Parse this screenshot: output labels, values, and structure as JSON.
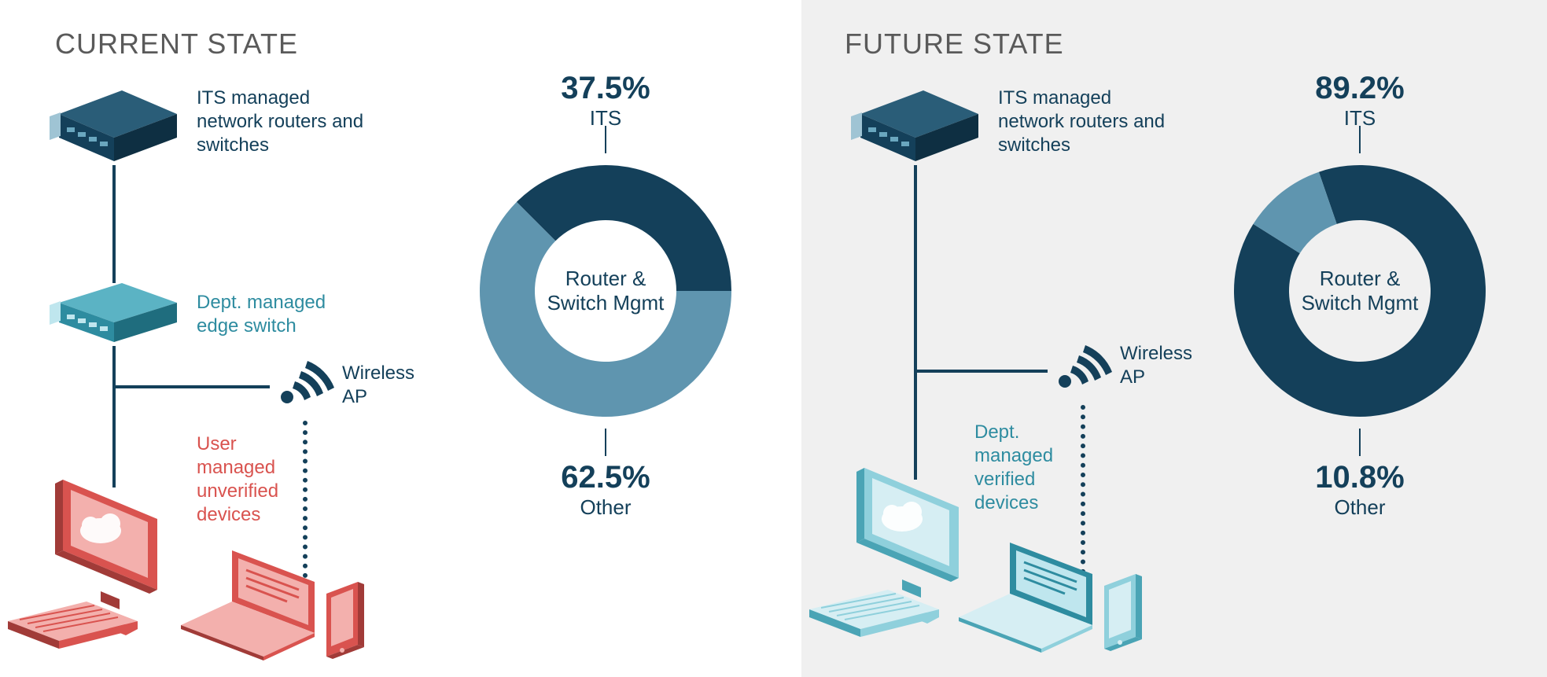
{
  "left": {
    "heading": "CURRENT STATE",
    "background": "#ffffff",
    "diagram": {
      "router_label": "ITS managed\nnetwork routers and\nswitches",
      "router_color": "#14405a",
      "edge_switch_label": "Dept. managed\nedge switch",
      "edge_switch_color": "#2e8ca0",
      "wireless_ap_label": "Wireless\nAP",
      "wireless_ap_color": "#14405a",
      "devices_label": "User\nmanaged\nunverified\ndevices",
      "devices_color": "#d9534f",
      "line_color": "#14405a"
    },
    "chart": {
      "type": "donut",
      "center_label": "Router &\nSwitch Mgmt",
      "slices": [
        {
          "name": "ITS",
          "value": 37.5,
          "color": "#14405a",
          "top_label_value": "37.5%",
          "top_label_name": "ITS"
        },
        {
          "name": "Other",
          "value": 62.5,
          "color": "#5f95af",
          "bottom_label_value": "62.5%",
          "bottom_label_name": "Other"
        }
      ],
      "outer_radius": 160,
      "inner_radius": 90,
      "start_angle_deg": -45,
      "label_color": "#14405a"
    }
  },
  "right": {
    "heading": "FUTURE STATE",
    "background": "#f0f0f0",
    "diagram": {
      "router_label": "ITS managed\nnetwork routers and\nswitches",
      "router_color": "#14405a",
      "wireless_ap_label": "Wireless\nAP",
      "wireless_ap_color": "#14405a",
      "devices_label": "Dept.\nmanaged\nverified\ndevices",
      "devices_color": "#2e8ca0",
      "line_color": "#14405a"
    },
    "chart": {
      "type": "donut",
      "center_label": "Router &\nSwitch Mgmt",
      "slices": [
        {
          "name": "ITS",
          "value": 89.2,
          "color": "#14405a",
          "top_label_value": "89.2%",
          "top_label_name": "ITS"
        },
        {
          "name": "Other",
          "value": 10.8,
          "color": "#5f95af",
          "bottom_label_value": "10.8%",
          "bottom_label_name": "Other"
        }
      ],
      "outer_radius": 160,
      "inner_radius": 90,
      "start_angle_deg": -19,
      "label_color": "#14405a"
    }
  }
}
